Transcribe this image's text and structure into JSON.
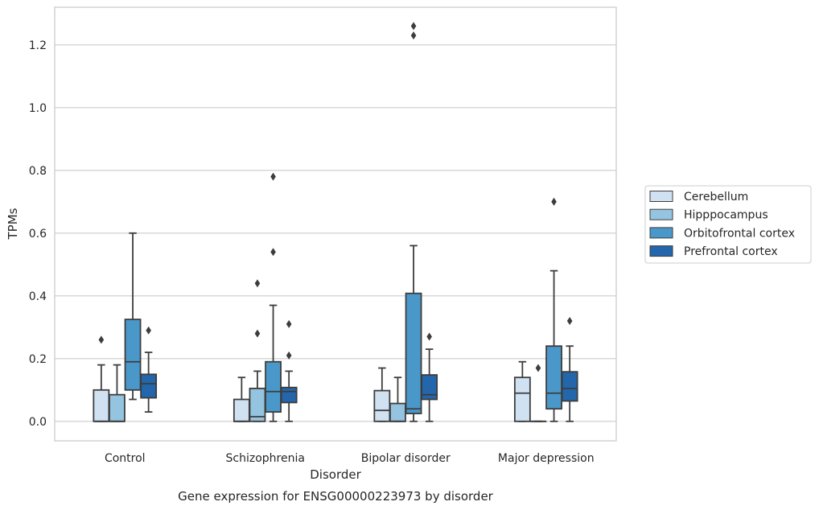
{
  "chart_data": {
    "type": "box",
    "xlabel": "Disorder",
    "ylabel": "TPMs",
    "caption": "Gene expression for ENSG00000223973 by disorder",
    "ylim": [
      -0.062,
      1.32
    ],
    "yticks": [
      "0.0",
      "0.2",
      "0.4",
      "0.6",
      "0.8",
      "1.0",
      "1.2"
    ],
    "grid": "horizontal",
    "legend_position": "right",
    "categories": [
      "Control",
      "Schizophrenia",
      "Bipolar disorder",
      "Major depression"
    ],
    "series": [
      {
        "name": "Cerebellum",
        "color": "#d0e1f2",
        "boxes": [
          {
            "min": 0.0,
            "q1": 0.0,
            "median": 0.0,
            "q3": 0.1,
            "max": 0.18,
            "outliers": [
              0.26
            ]
          },
          {
            "min": 0.0,
            "q1": 0.0,
            "median": 0.0,
            "q3": 0.07,
            "max": 0.14,
            "outliers": []
          },
          {
            "min": 0.0,
            "q1": 0.0,
            "median": 0.035,
            "q3": 0.098,
            "max": 0.17,
            "outliers": []
          },
          {
            "min": 0.0,
            "q1": 0.0,
            "median": 0.09,
            "q3": 0.14,
            "max": 0.19,
            "outliers": []
          }
        ]
      },
      {
        "name": "Hipppocampus",
        "color": "#94c4df",
        "boxes": [
          {
            "min": 0.0,
            "q1": 0.0,
            "median": 0.0,
            "q3": 0.085,
            "max": 0.18,
            "outliers": []
          },
          {
            "min": 0.0,
            "q1": 0.0,
            "median": 0.015,
            "q3": 0.105,
            "max": 0.16,
            "outliers": [
              0.28,
              0.44
            ]
          },
          {
            "min": 0.0,
            "q1": 0.0,
            "median": 0.0,
            "q3": 0.057,
            "max": 0.14,
            "outliers": []
          },
          {
            "min": 0.0,
            "q1": 0.0,
            "median": 0.0,
            "q3": 0.0,
            "max": 0.0,
            "outliers": [
              0.17
            ]
          }
        ]
      },
      {
        "name": "Orbitofrontal cortex",
        "color": "#4a98c9",
        "boxes": [
          {
            "min": 0.07,
            "q1": 0.1,
            "median": 0.19,
            "q3": 0.325,
            "max": 0.6,
            "outliers": []
          },
          {
            "min": 0.0,
            "q1": 0.03,
            "median": 0.095,
            "q3": 0.19,
            "max": 0.37,
            "outliers": [
              0.54,
              0.78
            ]
          },
          {
            "min": 0.0,
            "q1": 0.025,
            "median": 0.04,
            "q3": 0.408,
            "max": 0.56,
            "outliers": [
              1.23,
              1.26
            ]
          },
          {
            "min": 0.0,
            "q1": 0.04,
            "median": 0.09,
            "q3": 0.24,
            "max": 0.48,
            "outliers": [
              0.7
            ]
          }
        ]
      },
      {
        "name": "Prefrontal cortex",
        "color": "#2366ab",
        "boxes": [
          {
            "min": 0.03,
            "q1": 0.075,
            "median": 0.12,
            "q3": 0.15,
            "max": 0.22,
            "outliers": [
              0.29
            ]
          },
          {
            "min": 0.0,
            "q1": 0.06,
            "median": 0.095,
            "q3": 0.108,
            "max": 0.16,
            "outliers": [
              0.21,
              0.31
            ]
          },
          {
            "min": 0.0,
            "q1": 0.07,
            "median": 0.085,
            "q3": 0.148,
            "max": 0.23,
            "outliers": [
              0.27
            ]
          },
          {
            "min": 0.0,
            "q1": 0.065,
            "median": 0.105,
            "q3": 0.158,
            "max": 0.24,
            "outliers": [
              0.32
            ]
          }
        ]
      }
    ]
  }
}
